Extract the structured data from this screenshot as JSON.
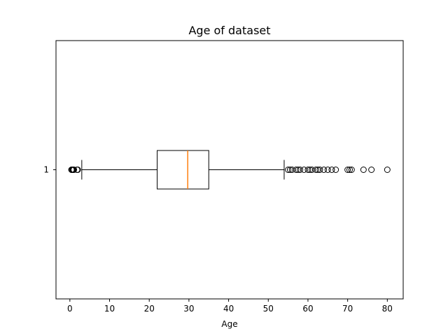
{
  "chart_data": {
    "type": "boxplot",
    "title": "Age of dataset",
    "xlabel": "Age",
    "ylabel": "",
    "orientation": "horizontal",
    "xlim": [
      -3.5,
      84
    ],
    "xticks": [
      0,
      10,
      20,
      30,
      40,
      50,
      60,
      70,
      80
    ],
    "yticks": [
      "1"
    ],
    "grid": false,
    "colors": {
      "box": "#000000",
      "median": "#ff7f0e",
      "flier": "#000000"
    },
    "boxes": [
      {
        "label": "1",
        "whisker_low": 3,
        "q1": 22,
        "median": 29.7,
        "q3": 35,
        "whisker_high": 54,
        "fliers": [
          0.4,
          0.5,
          0.7,
          0.8,
          0.9,
          1.0,
          1.8,
          2.0,
          55,
          55.5,
          56,
          57,
          57.5,
          58,
          59,
          60,
          60.5,
          61,
          62,
          62.5,
          63,
          64,
          65,
          66,
          67,
          70,
          70.5,
          71,
          74,
          76,
          80
        ]
      }
    ]
  }
}
